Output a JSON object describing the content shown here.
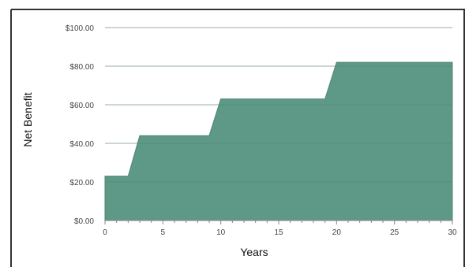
{
  "chart_data": {
    "type": "area",
    "step": true,
    "xlabel": "Years",
    "ylabel": "Net Benefit",
    "xlim": [
      0,
      30
    ],
    "ylim": [
      0,
      100
    ],
    "x_ticks": [
      0,
      5,
      10,
      15,
      20,
      25,
      30
    ],
    "x_tick_labels": [
      "0",
      "5",
      "10",
      "15",
      "20",
      "25",
      "30"
    ],
    "y_ticks": [
      0,
      20,
      40,
      60,
      80,
      100
    ],
    "y_tick_labels": [
      "$0.00",
      "$20.00",
      "$40.00",
      "$60.00",
      "$80.00",
      "$100.00"
    ],
    "grid": true,
    "series": [
      {
        "points": [
          [
            0,
            23
          ],
          [
            2,
            23
          ],
          [
            3,
            44
          ],
          [
            9,
            44
          ],
          [
            10,
            63
          ],
          [
            19,
            63
          ],
          [
            20,
            82
          ],
          [
            30,
            82
          ]
        ]
      }
    ],
    "colors": {
      "fill": "#5e9987",
      "fill_edge": "#4f8574",
      "grid": "#cfcfcf",
      "frame": "#333333"
    }
  }
}
